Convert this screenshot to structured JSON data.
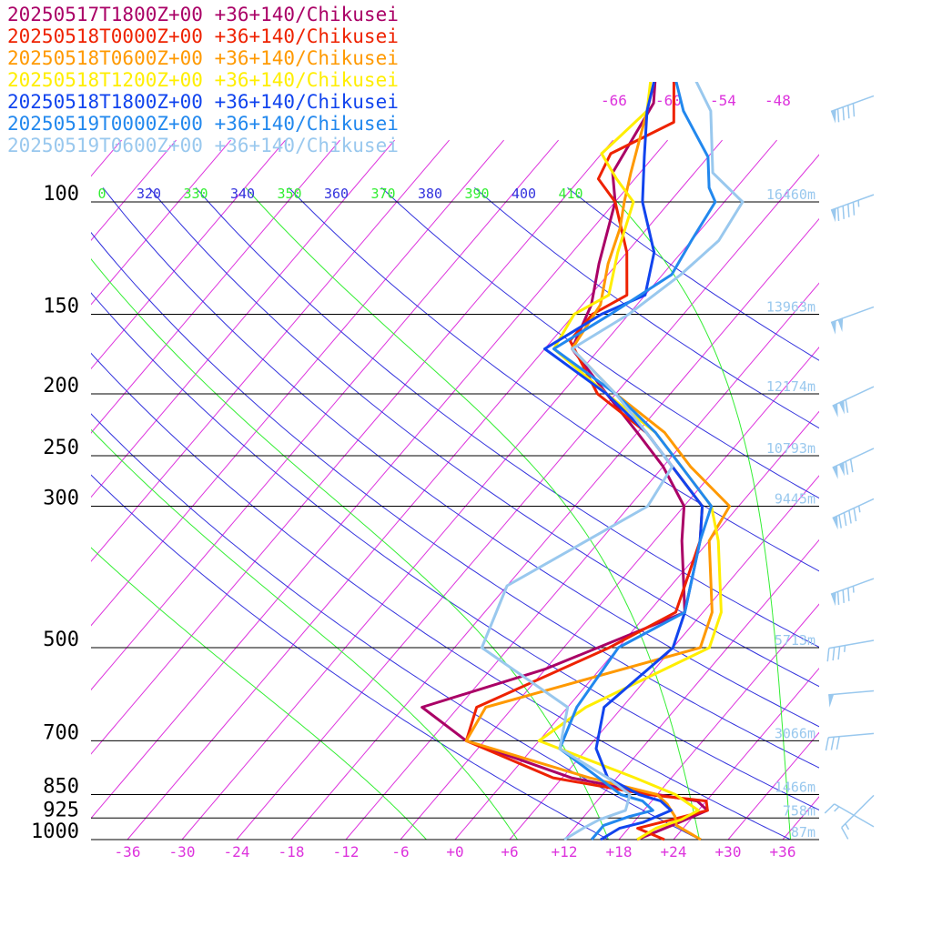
{
  "legend": [
    {
      "label": "20250517T1800Z+00 +36+140/Chikusei",
      "color": "#aa0066"
    },
    {
      "label": "20250518T0000Z+00 +36+140/Chikusei",
      "color": "#ee2200"
    },
    {
      "label": "20250518T0600Z+00 +36+140/Chikusei",
      "color": "#ff9900"
    },
    {
      "label": "20250518T1200Z+00 +36+140/Chikusei",
      "color": "#ffee00"
    },
    {
      "label": "20250518T1800Z+00 +36+140/Chikusei",
      "color": "#1144ee"
    },
    {
      "label": "20250519T0000Z+00 +36+140/Chikusei",
      "color": "#2288ee"
    },
    {
      "label": "20250519T0600Z+00 +36+140/Chikusei",
      "color": "#99c8ee"
    }
  ],
  "colors": {
    "isotherm": "#dd33dd",
    "isentrope": "#3333dd",
    "moist": "#33ee33",
    "height_label": "#99c8ee",
    "wind": "#99c8ee",
    "isobar": "#000000"
  },
  "chart_data": {
    "type": "line",
    "x_unit": "degC",
    "y_unit": "hPa",
    "y_scale": "log",
    "xlim": [
      -40,
      40
    ],
    "ylim": [
      1000,
      100
    ],
    "pressure_levels": [
      {
        "p": 100,
        "label": "100",
        "height": "16460m"
      },
      {
        "p": 150,
        "label": "150",
        "height": "13963m"
      },
      {
        "p": 200,
        "label": "200",
        "height": "12174m"
      },
      {
        "p": 250,
        "label": "250",
        "height": "10793m"
      },
      {
        "p": 300,
        "label": "300",
        "height": "9445m"
      },
      {
        "p": 500,
        "label": "500",
        "height": "5713m"
      },
      {
        "p": 700,
        "label": "700",
        "height": "3066m"
      },
      {
        "p": 850,
        "label": "850",
        "height": "1466m"
      },
      {
        "p": 925,
        "label": "925",
        "height": "758m"
      },
      {
        "p": 1000,
        "label": "1000",
        "height": "87m"
      }
    ],
    "x_ticks": [
      {
        "v": -36,
        "label": "-36"
      },
      {
        "v": -30,
        "label": "-30"
      },
      {
        "v": -24,
        "label": "-24"
      },
      {
        "v": -18,
        "label": "-18"
      },
      {
        "v": -12,
        "label": "-12"
      },
      {
        "v": -6,
        "label": "-6"
      },
      {
        "v": 0,
        "label": "+0"
      },
      {
        "v": 6,
        "label": "+6"
      },
      {
        "v": 12,
        "label": "+12"
      },
      {
        "v": 18,
        "label": "+18"
      },
      {
        "v": 24,
        "label": "+24"
      },
      {
        "v": 30,
        "label": "+30"
      },
      {
        "v": 36,
        "label": "+36"
      }
    ],
    "upper_isotherm_labels": [
      "-66",
      "-60",
      "-54",
      "-48"
    ],
    "theta_labels": [
      {
        "label": "0",
        "kind": "moist"
      },
      {
        "label": "320",
        "kind": "dry"
      },
      {
        "label": "330",
        "kind": "moist"
      },
      {
        "label": "340",
        "kind": "dry"
      },
      {
        "label": "350",
        "kind": "moist"
      },
      {
        "label": "360",
        "kind": "dry"
      },
      {
        "label": "370",
        "kind": "moist"
      },
      {
        "label": "380",
        "kind": "dry"
      },
      {
        "label": "390",
        "kind": "moist"
      },
      {
        "label": "400",
        "kind": "dry"
      },
      {
        "label": "410",
        "kind": "moist"
      }
    ],
    "isentropes_K": [
      290,
      300,
      310,
      320,
      330,
      340,
      350,
      360,
      380,
      400,
      420,
      440
    ],
    "moist_theta_K": [
      270,
      280,
      290,
      300,
      310,
      320,
      330,
      340,
      350,
      360,
      370,
      380,
      390,
      400,
      410
    ],
    "series": [
      {
        "name": "20250517T1800Z+00 +36+140/Chikusei",
        "points": [
          {
            "p": 1000,
            "t": 20
          },
          {
            "p": 980,
            "t": 21
          },
          {
            "p": 940,
            "t": 23
          },
          {
            "p": 900,
            "t": 25
          },
          {
            "p": 870,
            "t": 23
          },
          {
            "p": 850,
            "t": 18
          },
          {
            "p": 800,
            "t": 7
          },
          {
            "p": 700,
            "t": -8
          },
          {
            "p": 620,
            "t": -16
          },
          {
            "p": 540,
            "t": -6
          },
          {
            "p": 440,
            "t": 4
          },
          {
            "p": 340,
            "t": -3
          },
          {
            "p": 300,
            "t": -6
          },
          {
            "p": 260,
            "t": -12
          },
          {
            "p": 230,
            "t": -18
          },
          {
            "p": 200,
            "t": -25
          },
          {
            "p": 170,
            "t": -33
          },
          {
            "p": 145,
            "t": -35
          },
          {
            "p": 125,
            "t": -38
          },
          {
            "p": 100,
            "t": -42
          },
          {
            "p": 90,
            "t": -45
          },
          {
            "p": 70,
            "t": -47
          },
          {
            "p": 50,
            "t": -55
          },
          {
            "p": 40,
            "t": -60
          }
        ]
      },
      {
        "name": "20250518T0000Z+00 +36+140/Chikusei",
        "points": [
          {
            "p": 1000,
            "t": 23
          },
          {
            "p": 960,
            "t": 19
          },
          {
            "p": 930,
            "t": 22
          },
          {
            "p": 900,
            "t": 25
          },
          {
            "p": 870,
            "t": 24
          },
          {
            "p": 850,
            "t": 17
          },
          {
            "p": 800,
            "t": 5
          },
          {
            "p": 700,
            "t": -8
          },
          {
            "p": 620,
            "t": -10
          },
          {
            "p": 500,
            "t": -1
          },
          {
            "p": 440,
            "t": 3
          },
          {
            "p": 340,
            "t": -1
          },
          {
            "p": 300,
            "t": -4
          },
          {
            "p": 260,
            "t": -11
          },
          {
            "p": 230,
            "t": -17
          },
          {
            "p": 200,
            "t": -26
          },
          {
            "p": 165,
            "t": -34
          },
          {
            "p": 150,
            "t": -34
          },
          {
            "p": 140,
            "t": -32
          },
          {
            "p": 120,
            "t": -36
          },
          {
            "p": 100,
            "t": -42
          },
          {
            "p": 92,
            "t": -46
          },
          {
            "p": 84,
            "t": -47
          },
          {
            "p": 75,
            "t": -43
          },
          {
            "p": 55,
            "t": -51
          },
          {
            "p": 40,
            "t": -62
          }
        ]
      },
      {
        "name": "20250518T0600Z+00 +36+140/Chikusei",
        "points": [
          {
            "p": 1000,
            "t": 27
          },
          {
            "p": 950,
            "t": 23
          },
          {
            "p": 920,
            "t": 22
          },
          {
            "p": 880,
            "t": 20
          },
          {
            "p": 850,
            "t": 18
          },
          {
            "p": 800,
            "t": 9
          },
          {
            "p": 700,
            "t": -8
          },
          {
            "p": 620,
            "t": -9
          },
          {
            "p": 500,
            "t": 9
          },
          {
            "p": 440,
            "t": 7
          },
          {
            "p": 340,
            "t": 0
          },
          {
            "p": 300,
            "t": -1
          },
          {
            "p": 260,
            "t": -9
          },
          {
            "p": 230,
            "t": -15
          },
          {
            "p": 200,
            "t": -24
          },
          {
            "p": 170,
            "t": -33
          },
          {
            "p": 145,
            "t": -34
          },
          {
            "p": 125,
            "t": -37
          },
          {
            "p": 110,
            "t": -39
          },
          {
            "p": 100,
            "t": -41
          },
          {
            "p": 90,
            "t": -43
          },
          {
            "p": 72,
            "t": -47
          },
          {
            "p": 55,
            "t": -52
          },
          {
            "p": 40,
            "t": -60
          }
        ]
      },
      {
        "name": "20250518T1200Z+00 +36+140/Chikusei",
        "points": [
          {
            "p": 1000,
            "t": 20
          },
          {
            "p": 960,
            "t": 21
          },
          {
            "p": 930,
            "t": 23
          },
          {
            "p": 900,
            "t": 24
          },
          {
            "p": 850,
            "t": 20
          },
          {
            "p": 800,
            "t": 14
          },
          {
            "p": 700,
            "t": 0
          },
          {
            "p": 620,
            "t": 2
          },
          {
            "p": 500,
            "t": 10
          },
          {
            "p": 440,
            "t": 8
          },
          {
            "p": 340,
            "t": 1
          },
          {
            "p": 300,
            "t": -3
          },
          {
            "p": 260,
            "t": -10
          },
          {
            "p": 230,
            "t": -16
          },
          {
            "p": 200,
            "t": -25
          },
          {
            "p": 170,
            "t": -35
          },
          {
            "p": 150,
            "t": -36
          },
          {
            "p": 140,
            "t": -34
          },
          {
            "p": 120,
            "t": -37
          },
          {
            "p": 100,
            "t": -40
          },
          {
            "p": 92,
            "t": -44
          },
          {
            "p": 84,
            "t": -48
          },
          {
            "p": 72,
            "t": -47
          },
          {
            "p": 55,
            "t": -53
          },
          {
            "p": 40,
            "t": -60
          }
        ]
      },
      {
        "name": "20250518T1800Z+00 +36+140/Chikusei",
        "points": [
          {
            "p": 1000,
            "t": 16
          },
          {
            "p": 960,
            "t": 17
          },
          {
            "p": 940,
            "t": 19
          },
          {
            "p": 920,
            "t": 20
          },
          {
            "p": 900,
            "t": 21
          },
          {
            "p": 870,
            "t": 19
          },
          {
            "p": 850,
            "t": 16
          },
          {
            "p": 800,
            "t": 11
          },
          {
            "p": 720,
            "t": 7
          },
          {
            "p": 620,
            "t": 4
          },
          {
            "p": 500,
            "t": 6
          },
          {
            "p": 440,
            "t": 4
          },
          {
            "p": 340,
            "t": -1
          },
          {
            "p": 300,
            "t": -4
          },
          {
            "p": 260,
            "t": -11
          },
          {
            "p": 230,
            "t": -17
          },
          {
            "p": 200,
            "t": -25
          },
          {
            "p": 170,
            "t": -36
          },
          {
            "p": 150,
            "t": -33
          },
          {
            "p": 140,
            "t": -30
          },
          {
            "p": 120,
            "t": -33
          },
          {
            "p": 100,
            "t": -39
          },
          {
            "p": 85,
            "t": -43
          },
          {
            "p": 72,
            "t": -47
          },
          {
            "p": 55,
            "t": -52
          },
          {
            "p": 40,
            "t": -60
          }
        ]
      },
      {
        "name": "20250519T0000Z+00 +36+140/Chikusei",
        "points": [
          {
            "p": 1000,
            "t": 15
          },
          {
            "p": 950,
            "t": 15
          },
          {
            "p": 920,
            "t": 17
          },
          {
            "p": 900,
            "t": 19
          },
          {
            "p": 870,
            "t": 17
          },
          {
            "p": 850,
            "t": 14
          },
          {
            "p": 800,
            "t": 10
          },
          {
            "p": 720,
            "t": 3
          },
          {
            "p": 620,
            "t": 1
          },
          {
            "p": 500,
            "t": 0
          },
          {
            "p": 440,
            "t": 4
          },
          {
            "p": 340,
            "t": -1
          },
          {
            "p": 300,
            "t": -3
          },
          {
            "p": 260,
            "t": -10
          },
          {
            "p": 230,
            "t": -16
          },
          {
            "p": 200,
            "t": -24
          },
          {
            "p": 170,
            "t": -35
          },
          {
            "p": 150,
            "t": -32
          },
          {
            "p": 130,
            "t": -29
          },
          {
            "p": 115,
            "t": -30
          },
          {
            "p": 100,
            "t": -31
          },
          {
            "p": 95,
            "t": -33
          },
          {
            "p": 85,
            "t": -36
          },
          {
            "p": 72,
            "t": -43
          },
          {
            "p": 55,
            "t": -52
          },
          {
            "p": 40,
            "t": -60
          }
        ]
      },
      {
        "name": "20250519T0600Z+00 +36+140/Chikusei",
        "points": [
          {
            "p": 1000,
            "t": 12
          },
          {
            "p": 960,
            "t": 13
          },
          {
            "p": 930,
            "t": 14
          },
          {
            "p": 900,
            "t": 16
          },
          {
            "p": 850,
            "t": 15
          },
          {
            "p": 800,
            "t": 11
          },
          {
            "p": 720,
            "t": 3
          },
          {
            "p": 620,
            "t": 0
          },
          {
            "p": 500,
            "t": -15
          },
          {
            "p": 400,
            "t": -18
          },
          {
            "p": 300,
            "t": -10
          },
          {
            "p": 260,
            "t": -11
          },
          {
            "p": 230,
            "t": -17
          },
          {
            "p": 200,
            "t": -24
          },
          {
            "p": 170,
            "t": -33
          },
          {
            "p": 150,
            "t": -30
          },
          {
            "p": 130,
            "t": -28
          },
          {
            "p": 115,
            "t": -27
          },
          {
            "p": 100,
            "t": -28
          },
          {
            "p": 90,
            "t": -34
          },
          {
            "p": 72,
            "t": -40
          },
          {
            "p": 55,
            "t": -51
          },
          {
            "p": 40,
            "t": -60
          }
        ]
      }
    ],
    "wind_barbs": [
      {
        "p": 20,
        "dir": 250,
        "speed": 15
      },
      {
        "p": 70,
        "dir": 250,
        "speed": 90
      },
      {
        "p": 100,
        "dir": 250,
        "speed": 95
      },
      {
        "p": 150,
        "dir": 250,
        "speed": 100
      },
      {
        "p": 200,
        "dir": 245,
        "speed": 110
      },
      {
        "p": 250,
        "dir": 245,
        "speed": 120
      },
      {
        "p": 300,
        "dir": 245,
        "speed": 95
      },
      {
        "p": 400,
        "dir": 250,
        "speed": 85
      },
      {
        "p": 500,
        "dir": 260,
        "speed": 35
      },
      {
        "p": 600,
        "dir": 265,
        "speed": 50
      },
      {
        "p": 700,
        "dir": 265,
        "speed": 30
      },
      {
        "p": 875,
        "dir": 225,
        "speed": 15
      },
      {
        "p": 980,
        "dir": 300,
        "speed": 15
      }
    ]
  }
}
